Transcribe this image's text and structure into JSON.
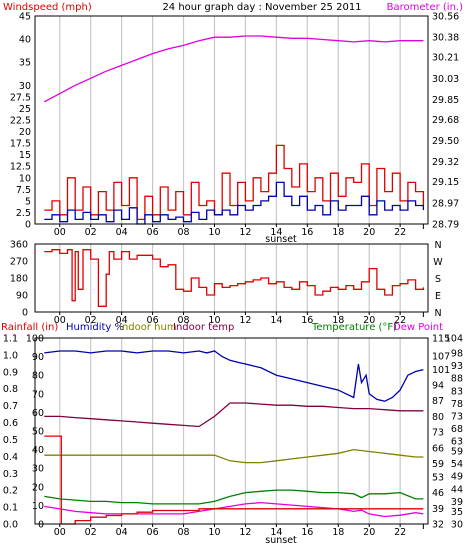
{
  "colors": {
    "red": "#e00000",
    "blue": "#0000b0",
    "magenta": "#e000e0",
    "maroon": "#800040",
    "olive": "#808000",
    "green": "#008000",
    "brown": "#804000",
    "grid": "#c8c8c8",
    "axis": "#000000"
  },
  "chart_data": [
    {
      "type": "line",
      "title": "24 hour graph day : November 25 2011",
      "ylabel_left": "Windspeed (mph)",
      "ylabel_right": "Barometer (in.)",
      "x_ticks": [
        "00",
        "02",
        "04",
        "06",
        "08",
        "10",
        "12",
        "14",
        "16",
        "18",
        "20",
        "22"
      ],
      "x_annotation": "sunset",
      "y_left_ticks": [
        "0",
        "2.5",
        "5",
        "7.5",
        "10",
        "12.5",
        "15",
        "17.5",
        "20",
        "22.5",
        "25",
        "27.5",
        "30",
        "35",
        "40",
        "45"
      ],
      "y_left_range": [
        0,
        45
      ],
      "y_right_ticks": [
        "28.79",
        "28.97",
        "29.15",
        "29.32",
        "29.50",
        "29.68",
        "29.85",
        "30.03",
        "30.21",
        "30.38",
        "30.56"
      ],
      "y_right_range": [
        28.79,
        30.56
      ],
      "series": [
        {
          "axis": "left",
          "color": "#e00000",
          "x": [
            -1,
            -0.5,
            0,
            0.5,
            1,
            1.5,
            2,
            2.5,
            3,
            3.5,
            4,
            4.5,
            5,
            5.5,
            6,
            6.5,
            7,
            7.5,
            8,
            8.5,
            9,
            9.5,
            10,
            10.5,
            11,
            11.5,
            12,
            12.5,
            13,
            13.5,
            14,
            14.5,
            15,
            15.5,
            16,
            16.5,
            17,
            17.5,
            18,
            18.5,
            19,
            19.5,
            20,
            20.5,
            21,
            21.5,
            22,
            22.5,
            23,
            23.5
          ],
          "y": [
            3,
            5,
            2,
            10,
            3,
            8,
            2,
            7,
            3,
            9,
            4,
            10,
            1,
            6,
            2,
            8,
            3,
            7,
            2,
            9,
            4,
            5,
            2,
            11,
            4,
            9,
            5,
            10,
            7,
            11,
            17,
            12,
            8,
            13,
            7,
            10,
            5,
            11,
            6,
            10,
            9,
            13,
            4,
            12,
            7,
            11,
            5,
            9,
            7,
            4
          ]
        },
        {
          "axis": "left",
          "color": "#0000b0",
          "x": [
            -1,
            -0.5,
            0,
            0.5,
            1,
            1.5,
            2,
            2.5,
            3,
            3.5,
            4,
            4.5,
            5,
            5.5,
            6,
            6.5,
            7,
            7.5,
            8,
            8.5,
            9,
            9.5,
            10,
            10.5,
            11,
            11.5,
            12,
            12.5,
            13,
            13.5,
            14,
            14.5,
            15,
            15.5,
            16,
            16.5,
            17,
            17.5,
            18,
            18.5,
            19,
            19.5,
            20,
            20.5,
            21,
            21.5,
            22,
            22.5,
            23,
            23.5
          ],
          "y": [
            1,
            2,
            0.5,
            3,
            1,
            2.5,
            1,
            2,
            0.5,
            3,
            1,
            3.5,
            0,
            2,
            0.5,
            2,
            1,
            1.5,
            0.5,
            2.5,
            1,
            3,
            2,
            3,
            2,
            4,
            3,
            4,
            5,
            6,
            9,
            6,
            4,
            6,
            3,
            4,
            2,
            5,
            3,
            4,
            4,
            6,
            2,
            5,
            3,
            4,
            3,
            5,
            4,
            3
          ]
        },
        {
          "axis": "right",
          "color": "#e000e0",
          "x": [
            -1,
            0,
            1,
            2,
            3,
            4,
            5,
            6,
            7,
            8,
            9,
            10,
            11,
            12,
            13,
            14,
            15,
            16,
            17,
            18,
            19,
            20,
            21,
            22,
            23,
            23.5
          ],
          "y": [
            29.83,
            29.9,
            29.97,
            30.03,
            30.09,
            30.14,
            30.19,
            30.24,
            30.28,
            30.31,
            30.35,
            30.38,
            30.38,
            30.39,
            30.39,
            30.38,
            30.37,
            30.37,
            30.36,
            30.35,
            30.34,
            30.35,
            30.34,
            30.35,
            30.35,
            30.35
          ]
        }
      ]
    },
    {
      "type": "line",
      "ylabel_right_letters": [
        "N",
        "W",
        "S",
        "E",
        "N"
      ],
      "x_ticks": [
        "00",
        "02",
        "04",
        "06",
        "08",
        "10",
        "12",
        "14",
        "16",
        "18",
        "20",
        "22"
      ],
      "y_left_ticks": [
        "0",
        "90",
        "180",
        "270",
        "360"
      ],
      "y_left_range": [
        0,
        360
      ],
      "series": [
        {
          "axis": "left",
          "color": "#e00000",
          "x": [
            -1,
            -0.5,
            0,
            0.5,
            0.8,
            1,
            1.2,
            1.5,
            2,
            2.5,
            3,
            3.2,
            3.5,
            4,
            4.5,
            5,
            5.5,
            6,
            6.5,
            7,
            7.5,
            8,
            8.5,
            9,
            9.5,
            10,
            10.5,
            11,
            11.5,
            12,
            12.5,
            13,
            13.5,
            14,
            14.5,
            15,
            15.5,
            16,
            16.5,
            17,
            17.5,
            18,
            18.5,
            19,
            19.5,
            20,
            20.5,
            21,
            21.5,
            22,
            22.5,
            23,
            23.5
          ],
          "y": [
            320,
            330,
            310,
            330,
            60,
            320,
            120,
            330,
            280,
            30,
            200,
            320,
            280,
            320,
            280,
            300,
            300,
            280,
            240,
            250,
            120,
            110,
            180,
            130,
            90,
            150,
            130,
            140,
            150,
            160,
            170,
            180,
            150,
            160,
            130,
            120,
            160,
            140,
            90,
            110,
            130,
            120,
            140,
            120,
            160,
            230,
            120,
            90,
            140,
            150,
            170,
            120,
            130
          ]
        }
      ]
    },
    {
      "type": "line",
      "ylabels": [
        "Rainfall (in)",
        "Humidity %",
        "Indoor hum",
        "Indoor temp",
        "Temperature (°F)",
        "Dew Point"
      ],
      "x_ticks": [
        "00",
        "02",
        "04",
        "06",
        "08",
        "10",
        "12",
        "14",
        "16",
        "18",
        "20",
        "22"
      ],
      "x_annotation": "sunset",
      "y_rain_ticks": [
        "0.0",
        "0.1",
        "0.2",
        "0.3",
        "0.4",
        "0.5",
        "0.6",
        "0.7",
        "0.8",
        "0.9",
        "1.0",
        "1.1"
      ],
      "y_rain_range": [
        0,
        1.1
      ],
      "y_hum_ticks": [
        "0",
        "10",
        "20",
        "30",
        "40",
        "50",
        "60",
        "70",
        "80",
        "90",
        "100"
      ],
      "y_hum_range": [
        0,
        100
      ],
      "y_temp_in_ticks": [
        "32",
        "39",
        "46",
        "53",
        "59",
        "66",
        "73",
        "80",
        "87",
        "94",
        "101",
        "107",
        "115"
      ],
      "y_temp_in_range": [
        32,
        115
      ],
      "y_temp_ticks": [
        "30",
        "35",
        "39",
        "44",
        "49",
        "54",
        "59",
        "63",
        "68",
        "73",
        "78",
        "83",
        "88",
        "93",
        "98",
        "104"
      ],
      "y_temp_range": [
        30,
        104
      ],
      "series": [
        {
          "name": "Humidity %",
          "axis": "humidity",
          "color": "#0000b0",
          "x": [
            -1,
            0,
            1,
            2,
            3,
            4,
            5,
            6,
            7,
            8,
            9,
            9.5,
            10,
            10.5,
            11,
            11.5,
            12,
            13,
            14,
            15,
            16,
            17,
            18,
            18.5,
            19,
            19.3,
            19.5,
            19.8,
            20,
            20.5,
            21,
            21.5,
            22,
            22.5,
            23,
            23.5
          ],
          "y": [
            92,
            93,
            93,
            92,
            93,
            93,
            92,
            93,
            93,
            92,
            93,
            92,
            93,
            90,
            88,
            87,
            86,
            84,
            80,
            78,
            76,
            74,
            72,
            70,
            68,
            86,
            76,
            80,
            70,
            67,
            66,
            68,
            72,
            80,
            82,
            83
          ]
        },
        {
          "name": "Indoor hum",
          "axis": "humidity",
          "color": "#808000",
          "x": [
            -1,
            0,
            1,
            2,
            3,
            4,
            5,
            6,
            7,
            8,
            9,
            10,
            11,
            12,
            13,
            14,
            15,
            16,
            17,
            18,
            19,
            20,
            21,
            22,
            23,
            23.5
          ],
          "y": [
            37,
            37,
            37,
            37,
            37,
            37,
            37,
            37,
            37,
            37,
            37,
            37,
            34,
            33,
            33,
            34,
            35,
            36,
            37,
            38,
            40,
            39,
            38,
            37,
            36,
            36
          ]
        },
        {
          "name": "Indoor temp",
          "axis": "temp_in",
          "color": "#800040",
          "x": [
            -1,
            0,
            1,
            2,
            3,
            4,
            5,
            6,
            7,
            8,
            9,
            10,
            11,
            12,
            13,
            14,
            15,
            16,
            17,
            18,
            19,
            20,
            21,
            22,
            23,
            23.5
          ],
          "y": [
            80,
            80,
            79.5,
            79,
            78.5,
            78,
            77.5,
            77,
            76.5,
            76,
            75.5,
            80,
            86,
            86,
            85.5,
            85,
            85,
            84.5,
            84.5,
            84,
            83.5,
            83.5,
            83,
            82.5,
            82.5,
            82.5
          ]
        },
        {
          "name": "Temperature (°F)",
          "axis": "temp",
          "color": "#008000",
          "x": [
            -1,
            0,
            1,
            2,
            3,
            4,
            5,
            6,
            7,
            8,
            9,
            10,
            11,
            12,
            13,
            14,
            15,
            16,
            17,
            18,
            19,
            19.5,
            20,
            21,
            22,
            23,
            23.5
          ],
          "y": [
            41,
            40,
            39.5,
            39,
            39,
            38.5,
            38.5,
            38,
            38,
            38,
            38,
            39,
            41,
            42.5,
            43,
            43.5,
            43.5,
            43,
            42.5,
            42.5,
            42,
            40.5,
            42,
            42,
            42.5,
            40,
            40
          ]
        },
        {
          "name": "Dew Point",
          "axis": "temp",
          "color": "#e000e0",
          "x": [
            -1,
            0,
            1,
            2,
            3,
            4,
            5,
            6,
            7,
            8,
            9,
            10,
            11,
            12,
            13,
            14,
            15,
            16,
            17,
            18,
            19,
            19.5,
            20,
            21,
            22,
            23,
            23.5
          ],
          "y": [
            37,
            36,
            35,
            34.5,
            34,
            34,
            34,
            34,
            34,
            34,
            35,
            36,
            37,
            38,
            38.5,
            38,
            37.5,
            37,
            36.5,
            36,
            35,
            35.5,
            34,
            33,
            33.5,
            34.5,
            34
          ]
        },
        {
          "name": "Rainfall (in)",
          "axis": "rain",
          "color": "#e00000",
          "x": [
            -1,
            0,
            0.1,
            1,
            2,
            3,
            4,
            5,
            6,
            7,
            8,
            9,
            10,
            11,
            12,
            13,
            14,
            15,
            16,
            17,
            18,
            19,
            20,
            21,
            22,
            23,
            23.5
          ],
          "y": [
            0.52,
            0.52,
            0,
            0.02,
            0.04,
            0.05,
            0.06,
            0.07,
            0.08,
            0.08,
            0.08,
            0.09,
            0.09,
            0.09,
            0.09,
            0.09,
            0.09,
            0.09,
            0.09,
            0.09,
            0.09,
            0.09,
            0.09,
            0.09,
            0.09,
            0.09,
            0.09
          ]
        }
      ]
    }
  ]
}
